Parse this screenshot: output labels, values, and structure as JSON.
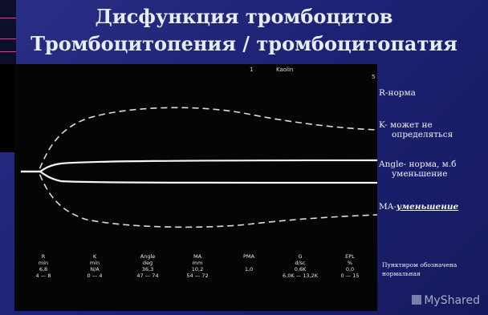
{
  "slide": {
    "title_line1": "Дисфункция тромбоцитов",
    "title_line2": "Тромбоцитопения / тромбоцитопатия"
  },
  "graph": {
    "top_label_1": "1",
    "top_label_kaolin": "Kaolin",
    "top_label_right": "5",
    "params": [
      {
        "name": "R",
        "unit": "min",
        "value": "6,8",
        "range": "4 — 8"
      },
      {
        "name": "K",
        "unit": "min",
        "value": "N/A",
        "range": "0 — 4"
      },
      {
        "name": "Angle",
        "unit": "deg",
        "value": "36,3",
        "range": "47 — 74"
      },
      {
        "name": "MA",
        "unit": "mm",
        "value": "10,2",
        "range": "54 — 72"
      },
      {
        "name": "PMA",
        "unit": "",
        "value": "1,0",
        "range": ""
      },
      {
        "name": "G",
        "unit": "d/sc",
        "value": "0,6K",
        "range": "6,0K — 13,2K"
      },
      {
        "name": "EPL",
        "unit": "%",
        "value": "0,0",
        "range": "0 — 15"
      }
    ]
  },
  "annotations": {
    "r": "R-норма",
    "k_line1": "K- может не",
    "k_line2": "определяться",
    "angle_line1": "Angle- норма, м.б",
    "angle_line2": "уменьшение",
    "ma_prefix": "MA-",
    "ma_emph": "уменьшение",
    "note_line1": "Пунктиром обозначена",
    "note_line2": "нормальная"
  },
  "watermark": "MyShared",
  "colors": {
    "slide_bg": "#1d2275",
    "panel_bg": "#050505",
    "text": "#f2f2f2"
  }
}
